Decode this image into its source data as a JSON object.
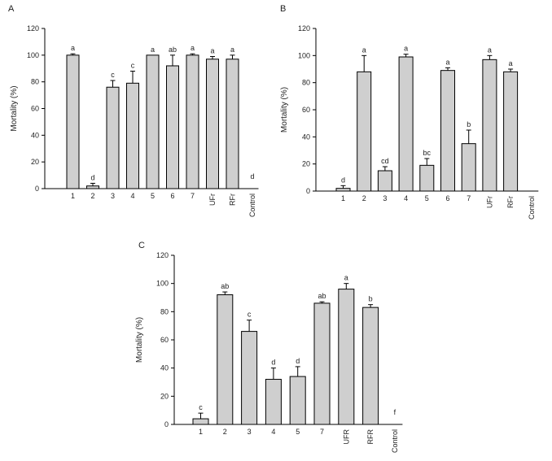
{
  "chart_data": [
    {
      "panel": "A",
      "type": "bar",
      "ylabel": "Mortality (%)",
      "ylim": [
        0,
        120
      ],
      "yticks": [
        0,
        20,
        40,
        60,
        80,
        100,
        120
      ],
      "categories": [
        "1",
        "2",
        "3",
        "4",
        "5",
        "6",
        "7",
        "UFr",
        "RFr",
        "Control"
      ],
      "values": [
        100,
        2,
        76,
        79,
        100,
        92,
        100,
        97,
        97,
        0
      ],
      "errors": [
        1,
        2,
        5,
        9,
        0,
        8,
        1,
        2,
        3,
        0
      ],
      "letters": [
        "a",
        "d",
        "c",
        "c",
        "a",
        "ab",
        "a",
        "a",
        "a",
        "d"
      ]
    },
    {
      "panel": "B",
      "type": "bar",
      "ylabel": "Mortality (%)",
      "ylim": [
        0,
        120
      ],
      "yticks": [
        0,
        20,
        40,
        60,
        80,
        100,
        120
      ],
      "categories": [
        "1",
        "2",
        "3",
        "4",
        "5",
        "6",
        "7",
        "UFr",
        "RFr",
        "Control"
      ],
      "values": [
        2,
        88,
        15,
        99,
        19,
        89,
        35,
        97,
        88,
        0
      ],
      "errors": [
        2,
        12,
        3,
        2,
        5,
        2,
        10,
        3,
        2,
        0
      ],
      "letters": [
        "d",
        "a",
        "cd",
        "a",
        "bc",
        "a",
        "b",
        "a",
        "a",
        ""
      ]
    },
    {
      "panel": "C",
      "type": "bar",
      "ylabel": "Mortality (%)",
      "ylim": [
        0,
        120
      ],
      "yticks": [
        0,
        20,
        40,
        60,
        80,
        100,
        120
      ],
      "categories": [
        "1",
        "2",
        "3",
        "4",
        "5",
        "7",
        "UFR",
        "RFR",
        "Control"
      ],
      "values": [
        4,
        92,
        66,
        32,
        34,
        86,
        96,
        83,
        0
      ],
      "errors": [
        4,
        2,
        8,
        8,
        7,
        1,
        4,
        2,
        0
      ],
      "letters": [
        "c",
        "ab",
        "c",
        "d",
        "d",
        "ab",
        "a",
        "b",
        "f"
      ]
    }
  ]
}
